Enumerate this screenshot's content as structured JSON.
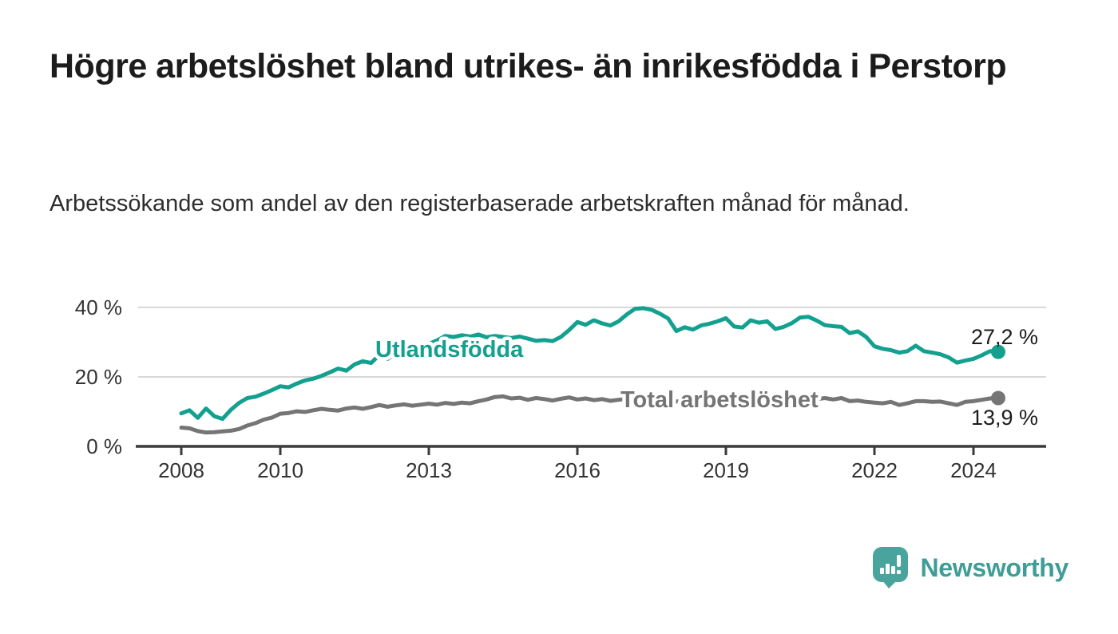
{
  "header": {
    "title": "Högre arbetslöshet bland utrikes- än inrikesfödda i Perstorp",
    "subtitle": "Arbetssökande som andel av den registerbaserade arbetskraften månad för månad."
  },
  "footer": {
    "brand": "Newsworthy",
    "brand_color": "#3e9d96",
    "logo_icon": "newsworthy-speech-bubble-bar-chart-icon"
  },
  "chart_data": {
    "type": "line",
    "title": "",
    "xlabel": "",
    "ylabel": "",
    "grid": "horizontal",
    "background": "#ffffff",
    "x_axis": {
      "tick_years": [
        2008,
        2010,
        2013,
        2016,
        2019,
        2022,
        2024
      ],
      "tick_labels": [
        "2008",
        "2010",
        "2013",
        "2016",
        "2019",
        "2022",
        "2024"
      ],
      "range": [
        2007.1,
        2025.5
      ],
      "color": "#3b3b3b",
      "label_color": "#333333"
    },
    "y_axis": {
      "ticks": [
        {
          "value": 0,
          "label": "0 %"
        },
        {
          "value": 20,
          "label": "20 %"
        },
        {
          "value": 40,
          "label": "40 %"
        }
      ],
      "range": [
        0,
        42
      ],
      "gridline_color": "#d8d8d8",
      "label_color": "#333333"
    },
    "sampling": {
      "start_year": 2008,
      "points_per_year": 6,
      "unit": "percent"
    },
    "series": [
      {
        "id": "utlandsfodda",
        "name": "Utlandsfödda",
        "color": "#13a08f",
        "end_label": "27,2 %",
        "end_value": 27.2,
        "values": [
          9.5,
          10.4,
          8.2,
          10.9,
          8.7,
          7.9,
          10.5,
          12.5,
          13.9,
          14.3,
          15.2,
          16.2,
          17.3,
          17.0,
          18.1,
          19.0,
          19.5,
          20.3,
          21.3,
          22.4,
          21.8,
          23.6,
          24.5,
          24.0,
          26.3,
          25.2,
          26.8,
          27.4,
          27.0,
          27.8,
          29.5,
          30.5,
          31.8,
          31.5,
          32.0,
          31.6,
          32.2,
          31.4,
          31.8,
          31.5,
          31.2,
          31.6,
          31.0,
          30.4,
          30.6,
          30.3,
          31.5,
          33.5,
          35.8,
          35.0,
          36.3,
          35.4,
          34.8,
          36.0,
          38.0,
          39.6,
          39.8,
          39.3,
          38.2,
          36.8,
          33.2,
          34.3,
          33.6,
          34.8,
          35.3,
          36.0,
          36.9,
          34.5,
          34.2,
          36.3,
          35.6,
          36.0,
          33.8,
          34.4,
          35.5,
          37.1,
          37.3,
          36.2,
          34.9,
          34.6,
          34.4,
          32.6,
          33.1,
          31.5,
          28.8,
          28.1,
          27.7,
          27.0,
          27.4,
          29.0,
          27.4,
          27.0,
          26.5,
          25.6,
          24.1,
          24.7,
          25.2,
          26.2,
          27.4,
          27.2
        ]
      },
      {
        "id": "total-arbetsloshet",
        "name": "Total arbetslöshet",
        "color": "#757575",
        "end_label": "13,9 %",
        "end_value": 13.9,
        "values": [
          5.4,
          5.2,
          4.4,
          4.0,
          4.1,
          4.3,
          4.5,
          5.0,
          6.0,
          6.7,
          7.7,
          8.3,
          9.4,
          9.6,
          10.1,
          9.9,
          10.4,
          10.8,
          10.5,
          10.3,
          10.9,
          11.2,
          10.8,
          11.3,
          11.9,
          11.4,
          11.8,
          12.1,
          11.7,
          12.0,
          12.3,
          12.0,
          12.5,
          12.2,
          12.6,
          12.4,
          13.0,
          13.5,
          14.2,
          14.4,
          13.8,
          14.0,
          13.4,
          13.9,
          13.6,
          13.2,
          13.7,
          14.1,
          13.5,
          13.8,
          13.3,
          13.6,
          13.1,
          13.4,
          13.7,
          13.3,
          13.6,
          13.2,
          13.5,
          13.1,
          12.9,
          13.2,
          12.8,
          13.1,
          12.7,
          13.0,
          12.8,
          13.1,
          12.7,
          13.0,
          13.2,
          12.9,
          13.1,
          13.5,
          14.0,
          14.2,
          13.8,
          13.6,
          13.9,
          13.5,
          13.9,
          13.0,
          13.2,
          12.8,
          12.6,
          12.4,
          12.8,
          11.9,
          12.4,
          13.0,
          13.0,
          12.8,
          12.9,
          12.4,
          11.9,
          12.8,
          13.0,
          13.4,
          13.8,
          13.9
        ]
      }
    ],
    "end_label_color": "#1c1c1c"
  }
}
